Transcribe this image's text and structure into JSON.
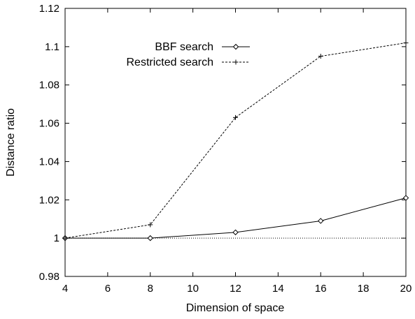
{
  "chart_data": {
    "type": "line",
    "title": "",
    "xlabel": "Dimension of space",
    "ylabel": "Distance ratio",
    "xlim": [
      4,
      20
    ],
    "ylim": [
      0.98,
      1.12
    ],
    "xticks": [
      4,
      6,
      8,
      10,
      12,
      14,
      16,
      18,
      20
    ],
    "xtick_labels": [
      "4",
      "6",
      "8",
      "10",
      "12",
      "14",
      "16",
      "18",
      "20"
    ],
    "yticks": [
      0.98,
      1,
      1.02,
      1.04,
      1.06,
      1.08,
      1.1,
      1.12
    ],
    "ytick_labels": [
      "0.98",
      "1",
      "1.02",
      "1.04",
      "1.06",
      "1.08",
      "1.1",
      "1.12"
    ],
    "grid": false,
    "legend_position": "top-center",
    "reference_line": {
      "y": 1,
      "style": "dotted"
    },
    "series": [
      {
        "name": "BBF search",
        "marker": "diamond",
        "line_style": "solid",
        "x": [
          4,
          8,
          12,
          16,
          20
        ],
        "y": [
          1.0,
          1.0,
          1.003,
          1.009,
          1.021
        ]
      },
      {
        "name": "Restricted search",
        "marker": "plus",
        "line_style": "dashed",
        "x": [
          4,
          8,
          12,
          16,
          20
        ],
        "y": [
          1.0,
          1.007,
          1.063,
          1.095,
          1.102
        ]
      }
    ]
  }
}
